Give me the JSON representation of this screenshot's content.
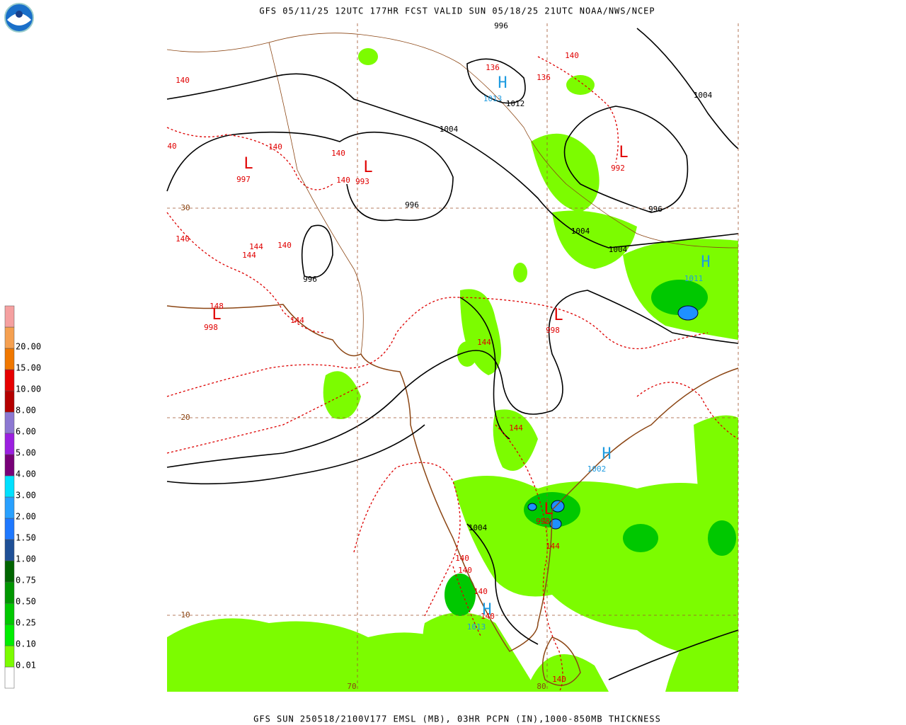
{
  "header": {
    "title": "GFS 05/11/25 12UTC 177HR FCST VALID SUN 05/18/25 21UTC NOAA/NWS/NCEP"
  },
  "footer": {
    "caption": "GFS SUN 250518/2100V177 EMSL (MB), 03HR PCPN (IN),1000-850MB THICKNESS"
  },
  "legend": {
    "labels": [
      "20.00",
      "15.00",
      "10.00",
      "8.00",
      "6.00",
      "5.00",
      "4.00",
      "3.00",
      "2.00",
      "1.50",
      "1.00",
      "0.75",
      "0.50",
      "0.25",
      "0.10",
      "0.01"
    ]
  },
  "latitudes": [
    30,
    20,
    10
  ],
  "longitudes": [
    70,
    80
  ],
  "isobar_labels": [
    996,
    1012,
    1004,
    1004,
    996,
    996,
    1004,
    1004,
    996,
    1004
  ],
  "thickness_labels": [
    140,
    136,
    136,
    140,
    140,
    140,
    40,
    140,
    144,
    144,
    140,
    140,
    148,
    144,
    144,
    144,
    144,
    140,
    140,
    140,
    140,
    140
  ],
  "lows": [
    {
      "symbol": "L",
      "value": 997
    },
    {
      "symbol": "L",
      "value": 993
    },
    {
      "symbol": "L",
      "value": 992
    },
    {
      "symbol": "L",
      "value": 998
    },
    {
      "symbol": "L",
      "value": 998
    },
    {
      "symbol": "L",
      "value": 998
    }
  ],
  "highs": [
    {
      "symbol": "H",
      "value": 1013
    },
    {
      "symbol": "H",
      "value": 1011
    },
    {
      "symbol": "H",
      "value": 1002
    },
    {
      "symbol": "H",
      "value": 1013
    }
  ]
}
